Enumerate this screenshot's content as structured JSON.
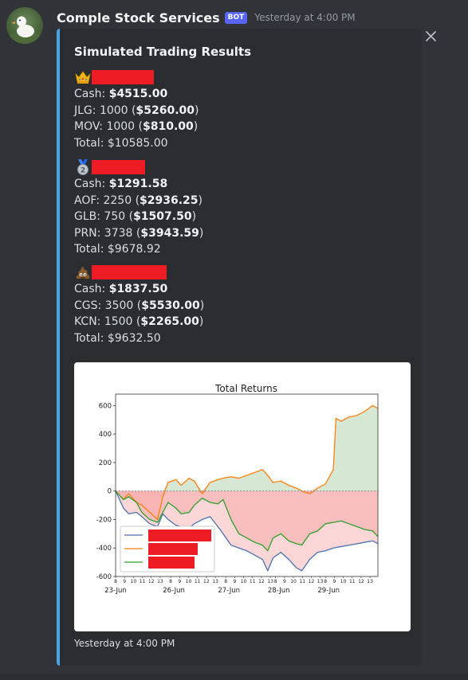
{
  "bot": {
    "name": "Comple Stock Services",
    "badge": "BOT",
    "timestamp": "Yesterday at 4:00 PM"
  },
  "embed": {
    "accent_color": "#4aa3e0",
    "title": "Simulated Trading Results",
    "players": [
      {
        "emoji": "crown",
        "lines": [
          {
            "prefix": "Cash: ",
            "bold": "$4515.00",
            "suffix": ""
          },
          {
            "prefix": "JLG: 1000 (",
            "bold": "$5260.00",
            "suffix": ")"
          },
          {
            "prefix": "MOV: 1000 (",
            "bold": "$810.00",
            "suffix": ")"
          }
        ],
        "total": "Total: $10585.00"
      },
      {
        "emoji": "second-place-medal",
        "lines": [
          {
            "prefix": "Cash: ",
            "bold": "$1291.58",
            "suffix": ""
          },
          {
            "prefix": "AOF: 2250 (",
            "bold": "$2936.25",
            "suffix": ")"
          },
          {
            "prefix": "GLB: 750 (",
            "bold": "$1507.50",
            "suffix": ")"
          },
          {
            "prefix": "PRN: 3738 (",
            "bold": "$3943.59",
            "suffix": ")"
          }
        ],
        "total": "Total: $9678.92"
      },
      {
        "emoji": "pile-of-poo",
        "lines": [
          {
            "prefix": "Cash: ",
            "bold": "$1837.50",
            "suffix": ""
          },
          {
            "prefix": "CGS: 3500 (",
            "bold": "$5530.00",
            "suffix": ")"
          },
          {
            "prefix": "KCN: 1500 (",
            "bold": "$2265.00",
            "suffix": ")"
          }
        ],
        "total": "Total: $9632.50"
      }
    ],
    "footer_timestamp": "Yesterday at 4:00 PM"
  },
  "chart_data": {
    "type": "line",
    "title": "Total Returns",
    "ylim": [
      -600,
      680
    ],
    "yticks": [
      600,
      400,
      200,
      0,
      -200,
      -400,
      -600
    ],
    "xlim": [
      0,
      1
    ],
    "date_labels": [
      "23-Jun",
      "26-Jun",
      "27-Jun",
      "28-Jun",
      "29-Jun"
    ],
    "hour_ticks": [
      "8",
      "9",
      "10",
      "11",
      "12",
      "13"
    ],
    "grid": false,
    "legend_position": "lower-left",
    "fill_colors": {
      "positive": "#c8dfc4",
      "negative": "#f6a5a5"
    },
    "series": [
      {
        "color": "#4c72b0",
        "x": [
          0.0,
          0.03,
          0.05,
          0.08,
          0.1,
          0.13,
          0.16,
          0.18,
          0.2,
          0.23,
          0.25,
          0.28,
          0.3,
          0.33,
          0.36,
          0.39,
          0.41,
          0.44,
          0.47,
          0.5,
          0.53,
          0.56,
          0.58,
          0.6,
          0.63,
          0.66,
          0.69,
          0.71,
          0.74,
          0.77,
          0.8,
          0.83,
          0.86,
          0.89,
          0.92,
          0.95,
          0.98,
          1.0
        ],
        "values": [
          0,
          -120,
          -160,
          -150,
          -180,
          -230,
          -250,
          -160,
          -200,
          -240,
          -250,
          -260,
          -230,
          -200,
          -180,
          -250,
          -300,
          -380,
          -400,
          -420,
          -450,
          -480,
          -560,
          -470,
          -430,
          -480,
          -540,
          -560,
          -480,
          -430,
          -420,
          -400,
          -390,
          -380,
          -370,
          -360,
          -350,
          -370
        ]
      },
      {
        "color": "#ff7f0e",
        "x": [
          0.0,
          0.03,
          0.05,
          0.08,
          0.1,
          0.13,
          0.16,
          0.18,
          0.2,
          0.23,
          0.25,
          0.28,
          0.3,
          0.33,
          0.36,
          0.39,
          0.41,
          0.44,
          0.47,
          0.5,
          0.53,
          0.56,
          0.58,
          0.6,
          0.63,
          0.66,
          0.69,
          0.71,
          0.74,
          0.77,
          0.8,
          0.83,
          0.84,
          0.86,
          0.89,
          0.92,
          0.95,
          0.98,
          1.0
        ],
        "values": [
          0,
          -60,
          -20,
          -80,
          -100,
          -150,
          -200,
          -40,
          60,
          80,
          40,
          90,
          70,
          -20,
          60,
          80,
          90,
          100,
          90,
          110,
          130,
          150,
          110,
          60,
          70,
          40,
          20,
          0,
          -20,
          20,
          50,
          150,
          510,
          490,
          520,
          530,
          560,
          600,
          580
        ]
      },
      {
        "color": "#2ca02c",
        "x": [
          0.0,
          0.03,
          0.05,
          0.08,
          0.1,
          0.13,
          0.16,
          0.18,
          0.2,
          0.23,
          0.25,
          0.28,
          0.3,
          0.33,
          0.36,
          0.39,
          0.41,
          0.44,
          0.47,
          0.5,
          0.53,
          0.56,
          0.58,
          0.6,
          0.63,
          0.66,
          0.69,
          0.71,
          0.74,
          0.77,
          0.8,
          0.83,
          0.86,
          0.89,
          0.92,
          0.95,
          0.98,
          1.0
        ],
        "values": [
          0,
          -60,
          -40,
          -80,
          -150,
          -200,
          -220,
          -150,
          -80,
          -120,
          -160,
          -150,
          -100,
          -50,
          -80,
          -90,
          -60,
          -200,
          -300,
          -330,
          -360,
          -380,
          -420,
          -330,
          -300,
          -350,
          -370,
          -380,
          -300,
          -280,
          -230,
          -220,
          -210,
          -230,
          -250,
          -270,
          -280,
          -320
        ]
      }
    ],
    "legend_entries_redacted": true
  }
}
